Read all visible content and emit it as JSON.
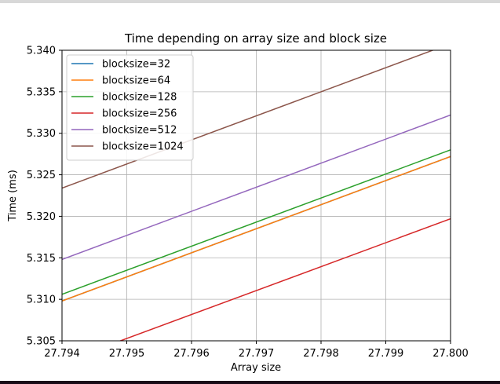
{
  "chart_data": {
    "type": "line",
    "title": "Time depending on array size and block size",
    "xlabel": "Array size",
    "ylabel": "Time (ms)",
    "xlim": [
      27.794,
      27.8
    ],
    "ylim": [
      5.305,
      5.34
    ],
    "x_ticks": [
      "27.794",
      "27.795",
      "27.796",
      "27.797",
      "27.798",
      "27.799",
      "27.800"
    ],
    "y_ticks": [
      "5.305",
      "5.310",
      "5.315",
      "5.320",
      "5.325",
      "5.330",
      "5.335",
      "5.340"
    ],
    "grid": true,
    "legend_position": "upper-left",
    "series": [
      {
        "name": "blocksize=32",
        "color": "#1f77b4",
        "x": [
          27.794,
          27.8
        ],
        "y": [
          5.3098,
          5.3272
        ]
      },
      {
        "name": "blocksize=64",
        "color": "#ff7f0e",
        "x": [
          27.794,
          27.8
        ],
        "y": [
          5.3098,
          5.3272
        ]
      },
      {
        "name": "blocksize=128",
        "color": "#2ca02c",
        "x": [
          27.794,
          27.8
        ],
        "y": [
          5.3106,
          5.328
        ]
      },
      {
        "name": "blocksize=256",
        "color": "#d62728",
        "x": [
          27.794,
          27.8
        ],
        "y": [
          5.3024,
          5.3197
        ]
      },
      {
        "name": "blocksize=512",
        "color": "#9467bd",
        "x": [
          27.794,
          27.8
        ],
        "y": [
          5.3148,
          5.3322
        ]
      },
      {
        "name": "blocksize=1024",
        "color": "#8c564b",
        "x": [
          27.794,
          27.8
        ],
        "y": [
          5.3234,
          5.3408
        ]
      }
    ]
  }
}
